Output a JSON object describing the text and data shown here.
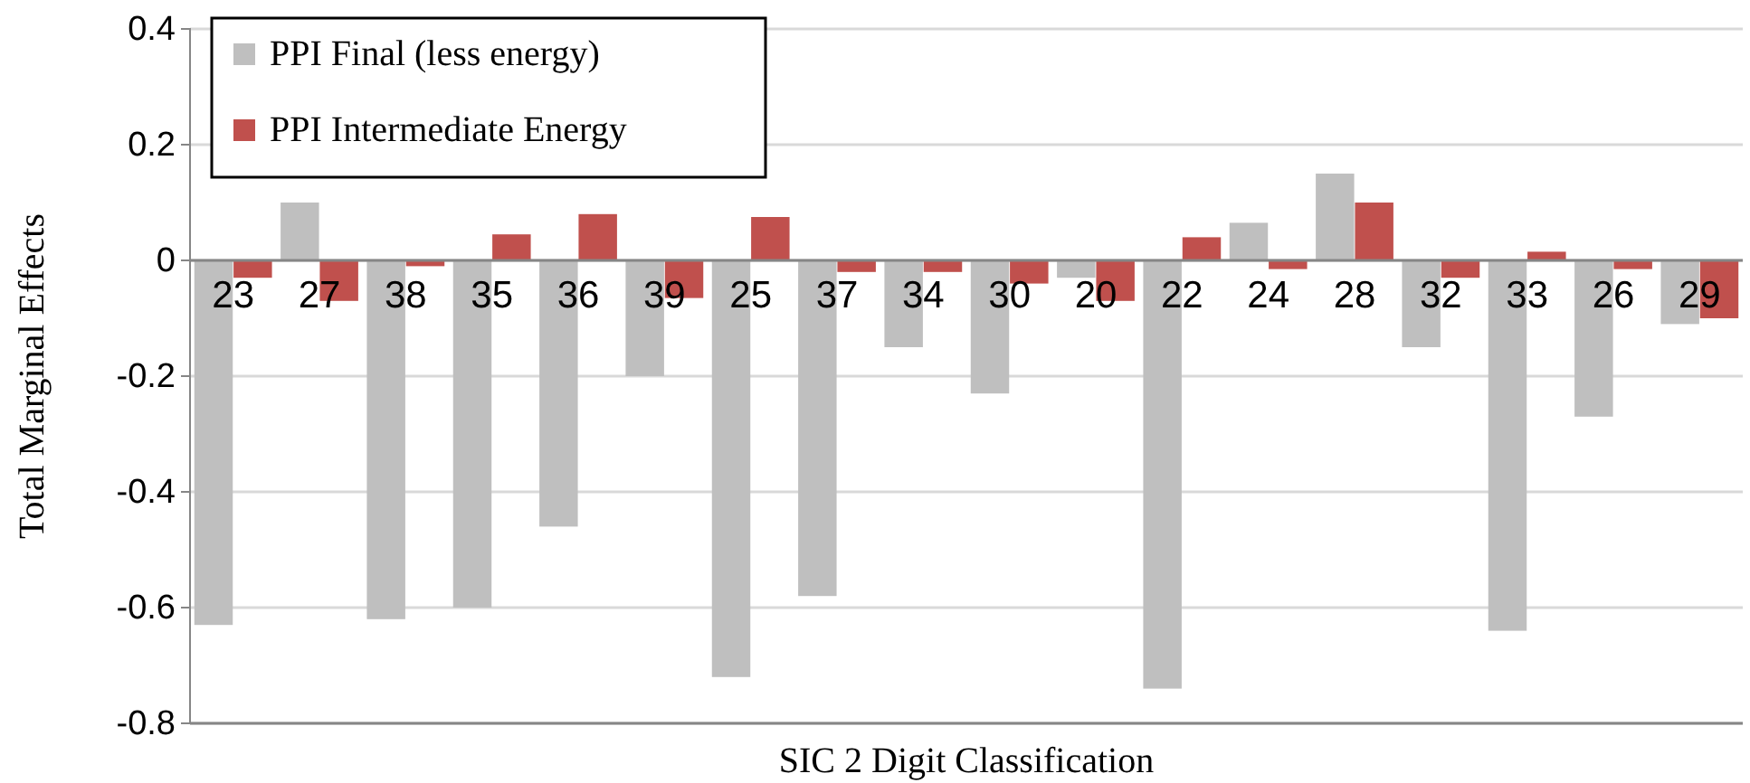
{
  "chart_data": {
    "type": "bar",
    "xlabel": "SIC 2 Digit Classification",
    "ylabel": "Total Marginal Effects",
    "categories": [
      "23",
      "27",
      "38",
      "35",
      "36",
      "39",
      "25",
      "37",
      "34",
      "30",
      "20",
      "22",
      "24",
      "28",
      "32",
      "33",
      "26",
      "29"
    ],
    "series": [
      {
        "name": "PPI Final (less energy)",
        "color": "#bfbfbf",
        "values": [
          -0.63,
          0.1,
          -0.62,
          -0.6,
          -0.46,
          -0.2,
          -0.72,
          -0.58,
          -0.15,
          -0.23,
          -0.03,
          -0.74,
          0.065,
          0.15,
          -0.15,
          -0.64,
          -0.27,
          -0.11
        ]
      },
      {
        "name": "PPI Intermediate Energy",
        "color": "#c0504d",
        "values": [
          -0.03,
          -0.07,
          -0.01,
          0.045,
          0.08,
          -0.065,
          0.075,
          -0.02,
          -0.02,
          -0.04,
          -0.07,
          0.04,
          -0.015,
          0.1,
          -0.03,
          0.015,
          -0.015,
          -0.1
        ]
      }
    ],
    "ylim": [
      -0.8,
      0.4
    ],
    "yticks": [
      -0.8,
      -0.6,
      -0.4,
      -0.2,
      0,
      0.2,
      0.4
    ],
    "grid": "y",
    "legend": "top left"
  }
}
